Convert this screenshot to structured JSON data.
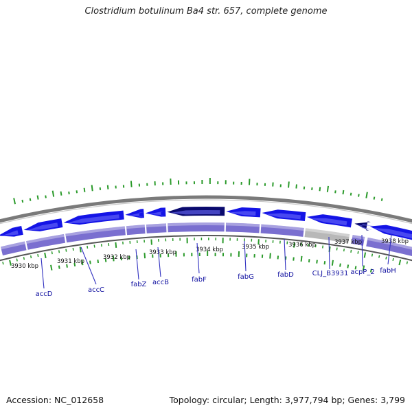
{
  "title": "Clostridium botulinum Ba4 str. 657, complete genome",
  "footer": {
    "accession": "Accession: NC_012658",
    "summary": "Topology: circular; Length: 3,977,794 bp; Genes: 3,799"
  },
  "colors": {
    "cds_forward": "#1414e6",
    "cds_highlight": "#0a0a6e",
    "band_gene": "#7a6fd0",
    "band_pseudo": "#b8b8b8",
    "backbone": "#7a7a7a",
    "gc_skew": "#2a9a2a",
    "tick": "#333333",
    "label_line": "#3030c0"
  },
  "scale_labels": [
    "3930 kbp",
    "3931 kbp",
    "3932 kbp",
    "3933 kbp",
    "3934 kbp",
    "3935 kbp",
    "3936 kbp",
    "3937 kbp",
    "3938 kbp"
  ],
  "gene_labels": [
    "accD",
    "accC",
    "fabZ",
    "accB",
    "fabF",
    "fabG",
    "fabD",
    "CLJ_B3931",
    "acpP_2",
    "fabH"
  ]
}
